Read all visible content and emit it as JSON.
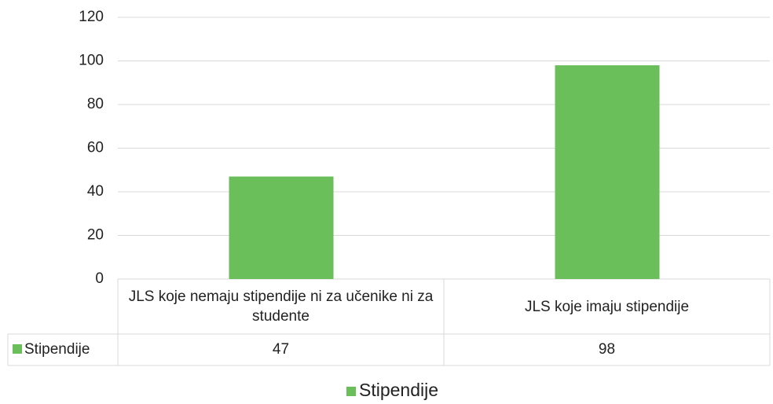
{
  "chart_data": {
    "type": "bar",
    "categories": [
      "JLS koje nemaju stipendije ni za učenike ni za studente",
      "JLS koje imaju stipendije"
    ],
    "series": [
      {
        "name": "Stipendije",
        "color": "#6abf5a",
        "values": [
          47,
          98
        ]
      }
    ],
    "ylim": [
      0,
      120
    ],
    "yticks": [
      0,
      20,
      40,
      60,
      80,
      100,
      120
    ],
    "grid": true,
    "legend": "bottom"
  }
}
